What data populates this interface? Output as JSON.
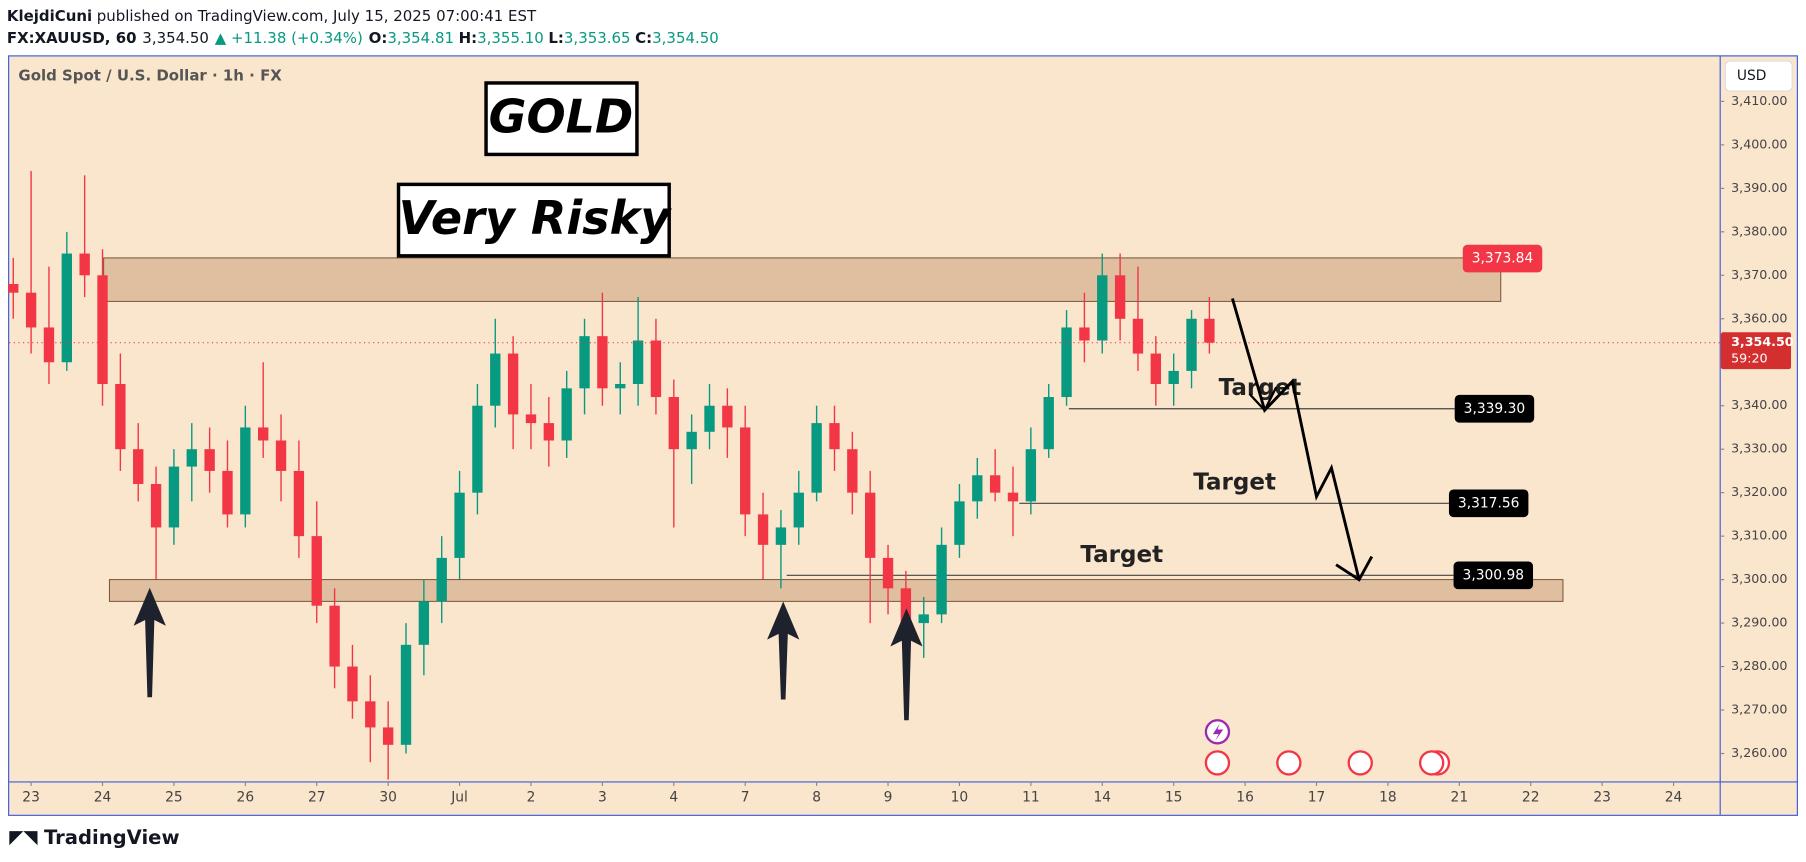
{
  "header": {
    "author": "KlejdiCuni",
    "published": "published on TradingView.com, July 15, 2025 07:00:41 EST",
    "symbol": "FX:XAUUSD, 60",
    "last": "3,354.50",
    "change": "▲ +11.38 (+0.34%)",
    "ohlc": [
      {
        "key": "O:",
        "value": "3,354.81"
      },
      {
        "key": "H:",
        "value": "3,355.10"
      },
      {
        "key": "L:",
        "value": "3,353.65"
      },
      {
        "key": "C:",
        "value": "3,354.50"
      }
    ]
  },
  "chart_data": {
    "type": "candlestick",
    "title": "Gold Spot / U.S. Dollar · 1h · FX",
    "currency": "USD",
    "headline": "GOLD",
    "warning": "Very Risky",
    "targets": [
      "Target",
      "Target",
      "Target"
    ],
    "up_color": "#089981",
    "down_color": "#f23645",
    "x": [
      -1,
      0,
      1,
      2,
      3,
      4,
      5,
      6,
      7,
      8,
      9,
      10,
      11,
      12,
      13,
      14,
      15,
      16,
      17,
      18,
      19,
      20,
      21,
      22,
      23,
      24,
      25,
      26,
      27,
      28,
      29,
      30,
      31,
      32,
      33,
      34,
      35,
      36,
      37,
      38,
      39,
      40,
      41,
      42,
      43,
      44,
      45,
      46,
      47,
      48,
      49,
      50,
      51,
      52,
      53,
      54,
      55,
      56,
      57,
      58,
      59,
      60,
      61,
      62,
      63,
      64,
      65,
      66
    ],
    "open": [
      3368,
      3366,
      3358,
      3350,
      3375,
      3370,
      3345,
      3330,
      3322,
      3312,
      3326,
      3330,
      3325,
      3315,
      3335,
      3332,
      3325,
      3310,
      3294,
      3280,
      3272,
      3266,
      3262,
      3285,
      3295,
      3305,
      3320,
      3340,
      3352,
      3338,
      3336,
      3332,
      3344,
      3356,
      3344,
      3345,
      3355,
      3342,
      3330,
      3334,
      3340,
      3335,
      3315,
      3308,
      3312,
      3320,
      3336,
      3330,
      3320,
      3305,
      3298,
      3290,
      3292,
      3308,
      3318,
      3324,
      3320,
      3318,
      3330,
      3342,
      3358,
      3355,
      3370,
      3360,
      3352,
      3345,
      3348,
      3360
    ],
    "high": [
      3374,
      3394,
      3372,
      3380,
      3393,
      3376,
      3352,
      3336,
      3326,
      3330,
      3336,
      3335,
      3332,
      3340,
      3350,
      3338,
      3332,
      3318,
      3298,
      3285,
      3278,
      3272,
      3290,
      3300,
      3310,
      3325,
      3345,
      3360,
      3356,
      3345,
      3342,
      3348,
      3360,
      3366,
      3350,
      3365,
      3360,
      3346,
      3338,
      3345,
      3344,
      3340,
      3320,
      3316,
      3325,
      3340,
      3340,
      3334,
      3325,
      3308,
      3302,
      3296,
      3312,
      3322,
      3328,
      3330,
      3326,
      3335,
      3345,
      3362,
      3366,
      3375,
      3375,
      3372,
      3356,
      3352,
      3362,
      3365
    ],
    "low": [
      3360,
      3352,
      3345,
      3348,
      3365,
      3340,
      3325,
      3318,
      3300,
      3308,
      3318,
      3320,
      3312,
      3312,
      3328,
      3318,
      3305,
      3290,
      3275,
      3268,
      3258,
      3254,
      3260,
      3278,
      3290,
      3300,
      3315,
      3335,
      3330,
      3330,
      3326,
      3328,
      3338,
      3340,
      3338,
      3340,
      3338,
      3312,
      3322,
      3330,
      3328,
      3310,
      3300,
      3298,
      3308,
      3318,
      3325,
      3315,
      3290,
      3292,
      3285,
      3282,
      3290,
      3305,
      3314,
      3318,
      3310,
      3315,
      3328,
      3340,
      3350,
      3352,
      3355,
      3348,
      3340,
      3340,
      3344,
      3352
    ],
    "close": [
      3366,
      3358,
      3350,
      3375,
      3370,
      3345,
      3330,
      3322,
      3312,
      3326,
      3330,
      3325,
      3315,
      3335,
      3332,
      3325,
      3310,
      3294,
      3280,
      3272,
      3266,
      3262,
      3285,
      3295,
      3305,
      3320,
      3340,
      3352,
      3338,
      3336,
      3332,
      3344,
      3356,
      3344,
      3345,
      3355,
      3342,
      3330,
      3334,
      3340,
      3335,
      3315,
      3308,
      3312,
      3320,
      3336,
      3330,
      3320,
      3305,
      3298,
      3290,
      3292,
      3308,
      3318,
      3324,
      3320,
      3318,
      3330,
      3342,
      3358,
      3355,
      3370,
      3360,
      3352,
      3345,
      3348,
      3360,
      3354.5
    ],
    "xlim": [
      -1.226,
      94.58
    ],
    "xticks": [
      {
        "value": 0,
        "label": "23"
      },
      {
        "value": 4,
        "label": "24"
      },
      {
        "value": 8,
        "label": "25"
      },
      {
        "value": 12,
        "label": "26"
      },
      {
        "value": 16,
        "label": "27"
      },
      {
        "value": 20,
        "label": "30"
      },
      {
        "value": 24,
        "label": "Jul"
      },
      {
        "value": 28,
        "label": "2"
      },
      {
        "value": 32,
        "label": "3"
      },
      {
        "value": 36,
        "label": "4"
      },
      {
        "value": 40,
        "label": "7"
      },
      {
        "value": 44,
        "label": "8"
      },
      {
        "value": 48,
        "label": "9"
      },
      {
        "value": 52,
        "label": "10"
      },
      {
        "value": 56,
        "label": "11"
      },
      {
        "value": 60,
        "label": "14"
      },
      {
        "value": 64,
        "label": "15"
      },
      {
        "value": 68,
        "label": "16"
      },
      {
        "value": 72,
        "label": "17"
      },
      {
        "value": 76,
        "label": "18"
      },
      {
        "value": 80,
        "label": "21"
      },
      {
        "value": 84,
        "label": "22"
      },
      {
        "value": 88,
        "label": "23"
      },
      {
        "value": 92,
        "label": "24"
      }
    ],
    "ylim": [
      3253.6,
      3420.6
    ],
    "yticks": [
      {
        "value": 3260,
        "label": "3,260.00"
      },
      {
        "value": 3270,
        "label": "3,270.00"
      },
      {
        "value": 3280,
        "label": "3,280.00"
      },
      {
        "value": 3290,
        "label": "3,290.00"
      },
      {
        "value": 3300,
        "label": "3,300.00"
      },
      {
        "value": 3310,
        "label": "3,310.00"
      },
      {
        "value": 3320,
        "label": "3,320.00"
      },
      {
        "value": 3330,
        "label": "3,330.00"
      },
      {
        "value": 3340,
        "label": "3,340.00"
      },
      {
        "value": 3350,
        "label": "3,350.00"
      },
      {
        "value": 3360,
        "label": "3,360.00"
      },
      {
        "value": 3370,
        "label": "3,370.00"
      },
      {
        "value": 3380,
        "label": "3,380.00"
      },
      {
        "value": 3390,
        "label": "3,390.00"
      },
      {
        "value": 3400,
        "label": "3,400.00"
      },
      {
        "value": 3410,
        "label": "3,410.00"
      }
    ],
    "last_price": {
      "value": 3354.5,
      "label": "3,354.50"
    },
    "countdown": "59:20",
    "zones": [
      {
        "low": 3364,
        "high": 3374
      },
      {
        "low": 3295,
        "high": 3300
      }
    ],
    "levels": {
      "values": [
        3373.84,
        3339.3,
        3317.56,
        3300.98
      ],
      "value_labels": [
        "3,373.84",
        "3,339.30",
        "3,317.56",
        "3,300.98"
      ],
      "colors": [
        "#f23645",
        "#000000",
        "#000000",
        "#000000"
      ]
    }
  },
  "footer": {
    "brand": "TradingView"
  }
}
